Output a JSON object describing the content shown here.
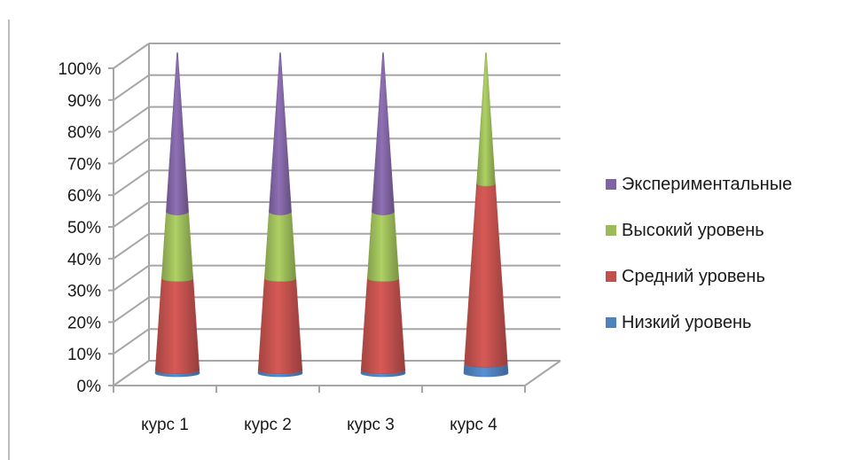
{
  "chart_data": {
    "type": "bar",
    "style": "3d-cone-stacked-100",
    "categories": [
      "курс 1",
      "курс 2",
      "курс 3",
      "курс 4"
    ],
    "y_ticks": [
      "0%",
      "10%",
      "20%",
      "30%",
      "40%",
      "50%",
      "60%",
      "70%",
      "80%",
      "90%",
      "100%"
    ],
    "ylim": [
      0,
      100
    ],
    "grid": true,
    "legend_position": "right",
    "series": [
      {
        "name": "Низкий уровень",
        "color": "#4f81bd",
        "values": [
          1,
          1,
          1,
          3
        ]
      },
      {
        "name": "Средний уровень",
        "color": "#c0504d",
        "values": [
          29,
          29,
          29,
          57
        ]
      },
      {
        "name": "Высокий уровень",
        "color": "#9bbb59",
        "values": [
          21,
          21,
          21,
          40
        ]
      },
      {
        "name": "Экспериментальные",
        "color": "#8064a2",
        "values": [
          49,
          49,
          49,
          0
        ]
      }
    ]
  }
}
